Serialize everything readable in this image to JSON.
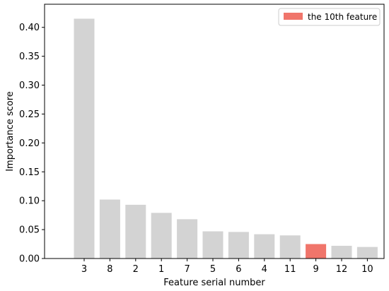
{
  "chart_data": {
    "type": "bar",
    "categories": [
      "3",
      "8",
      "2",
      "1",
      "7",
      "5",
      "6",
      "4",
      "11",
      "9",
      "12",
      "10"
    ],
    "values": [
      0.415,
      0.102,
      0.093,
      0.079,
      0.068,
      0.047,
      0.046,
      0.042,
      0.04,
      0.025,
      0.022,
      0.02
    ],
    "highlight_index": 9,
    "xlabel": "Feature serial number",
    "ylabel": "Importance score",
    "ylim": [
      0,
      0.44
    ],
    "yticks": [
      0.0,
      0.05,
      0.1,
      0.15,
      0.2,
      0.25,
      0.3,
      0.35,
      0.4
    ],
    "ytick_labels": [
      "0.00",
      "0.05",
      "0.10",
      "0.15",
      "0.20",
      "0.25",
      "0.30",
      "0.35",
      "0.40"
    ],
    "grid": false,
    "legend": {
      "placement": "top-right",
      "entries": [
        {
          "label": "the 10th feature",
          "color": "#f0756b"
        }
      ]
    },
    "colors": {
      "default": "#d3d3d3",
      "highlight": "#f0756b"
    }
  }
}
